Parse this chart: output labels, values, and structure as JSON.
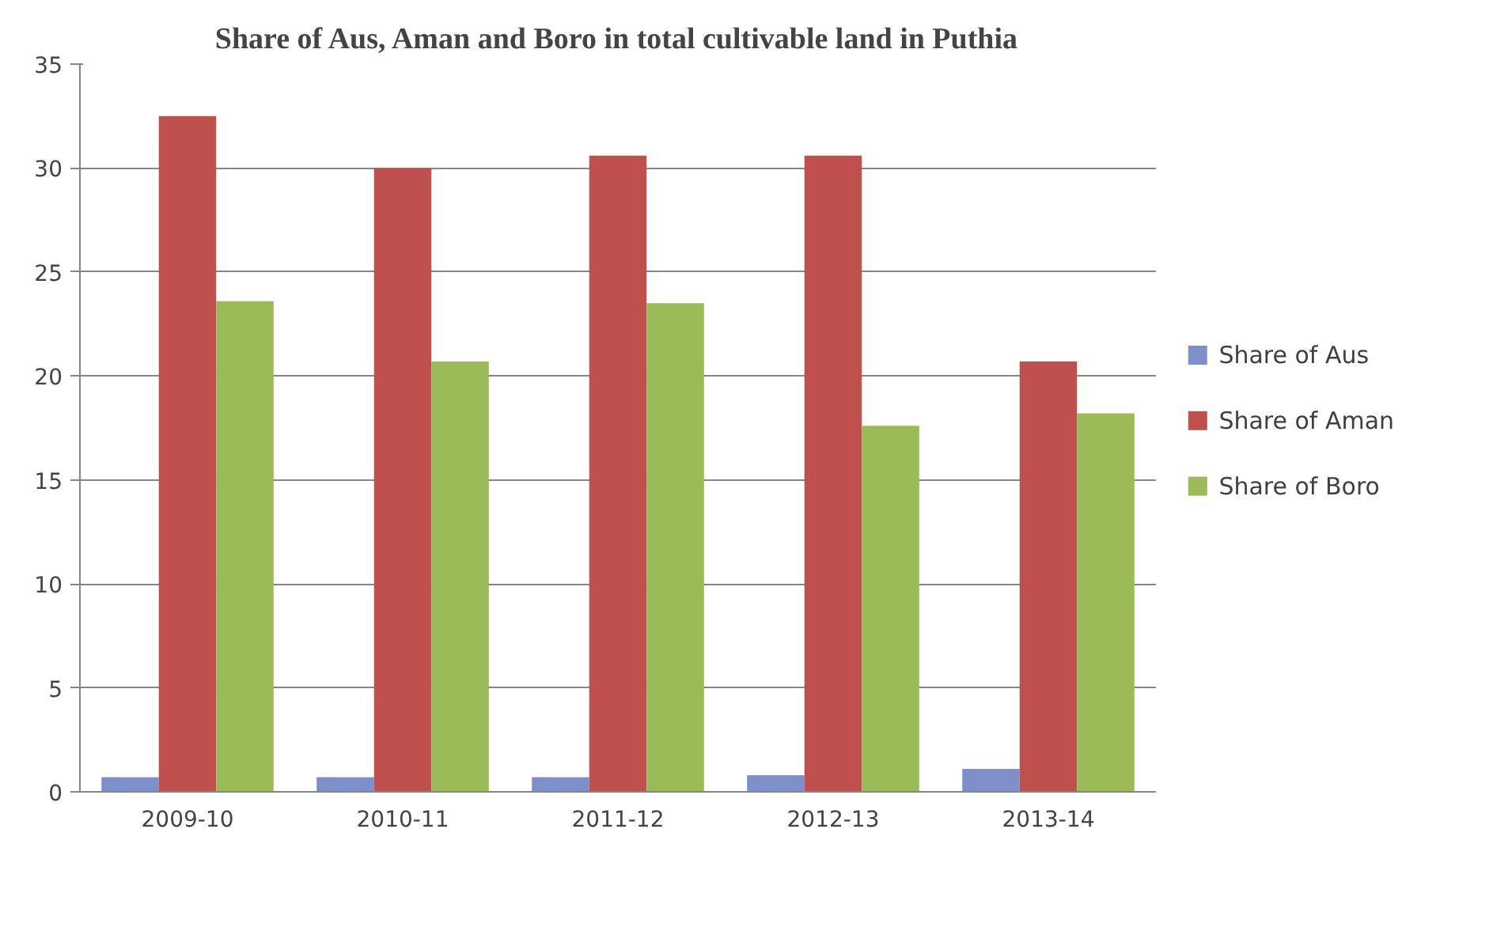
{
  "chart_data": {
    "type": "bar",
    "title": "Share of Aus, Aman and Boro in total cultivable land in Puthia",
    "categories": [
      "2009-10",
      "2010-11",
      "2011-12",
      "2012-13",
      "2013-14"
    ],
    "series": [
      {
        "name": "Share of Aus",
        "color": "#7f8fc9",
        "values": [
          0.7,
          0.7,
          0.7,
          0.8,
          1.1
        ]
      },
      {
        "name": "Share of Aman",
        "color": "#c0504d",
        "values": [
          32.5,
          30.0,
          30.6,
          30.6,
          20.7
        ]
      },
      {
        "name": "Share of Boro",
        "color": "#9bbb59",
        "values": [
          23.6,
          20.7,
          23.5,
          17.6,
          18.2
        ]
      }
    ],
    "ylim": [
      0,
      35
    ],
    "yticks": [
      0,
      5,
      10,
      15,
      20,
      25,
      30,
      35
    ],
    "grid": "y",
    "legend": "right"
  }
}
